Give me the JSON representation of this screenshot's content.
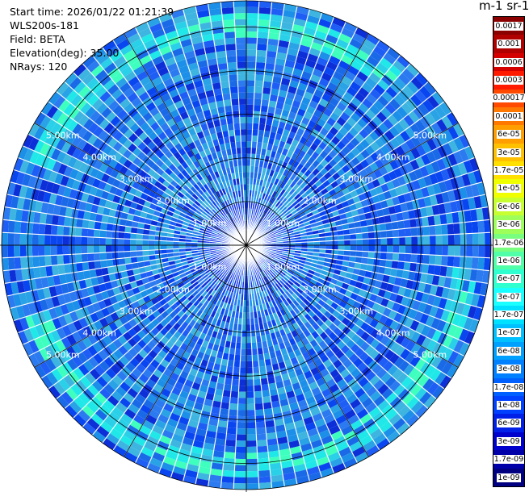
{
  "info": {
    "start_time": "Start time: 2026/01/22 01:21:39",
    "instrument": "WLS200s-181",
    "field": "Field: BETA",
    "elevation": "Elevation(deg): 35.00",
    "nrays": "NRays: 120"
  },
  "colorbar": {
    "unit_label": "m-1 sr-1",
    "ticks": [
      "0.0017",
      "0.001",
      "0.0006",
      "0.0003",
      "0.00017",
      "0.0001",
      "6e-05",
      "3e-05",
      "1.7e-05",
      "1e-05",
      "6e-06",
      "3e-06",
      "1.7e-06",
      "1e-06",
      "6e-07",
      "3e-07",
      "1.7e-07",
      "1e-07",
      "6e-08",
      "3e-08",
      "1.7e-08",
      "1e-08",
      "6e-09",
      "3e-09",
      "1.7e-09",
      "1e-09"
    ],
    "colors": [
      "#8b0000",
      "#b00000",
      "#d40000",
      "#ff1a00",
      "#ff4a00",
      "#ff7800",
      "#ff9e00",
      "#ffc000",
      "#ffe000",
      "#f0ff00",
      "#c8ff30",
      "#9eff5a",
      "#78ff80",
      "#50ffa8",
      "#30ffd0",
      "#1affff",
      "#00e0ff",
      "#00c0ff",
      "#00a0ff",
      "#0080ff",
      "#0060ff",
      "#0040ff",
      "#0020e8",
      "#0000cc",
      "#0000a8",
      "#000080"
    ]
  },
  "range_rings": {
    "labels": [
      "1.00km",
      "2.00km",
      "3.00km",
      "4.00km",
      "5.00km"
    ]
  },
  "chart_data": {
    "type": "heatmap",
    "projection": "polar-ppi",
    "field": "BETA",
    "rays": 120,
    "max_range_km": 5.6,
    "ring_km": [
      1,
      2,
      3,
      4,
      5
    ],
    "dominant_level": "1e-08 to 6e-08",
    "enhanced_band_km": [
      4.7,
      5.3
    ]
  }
}
